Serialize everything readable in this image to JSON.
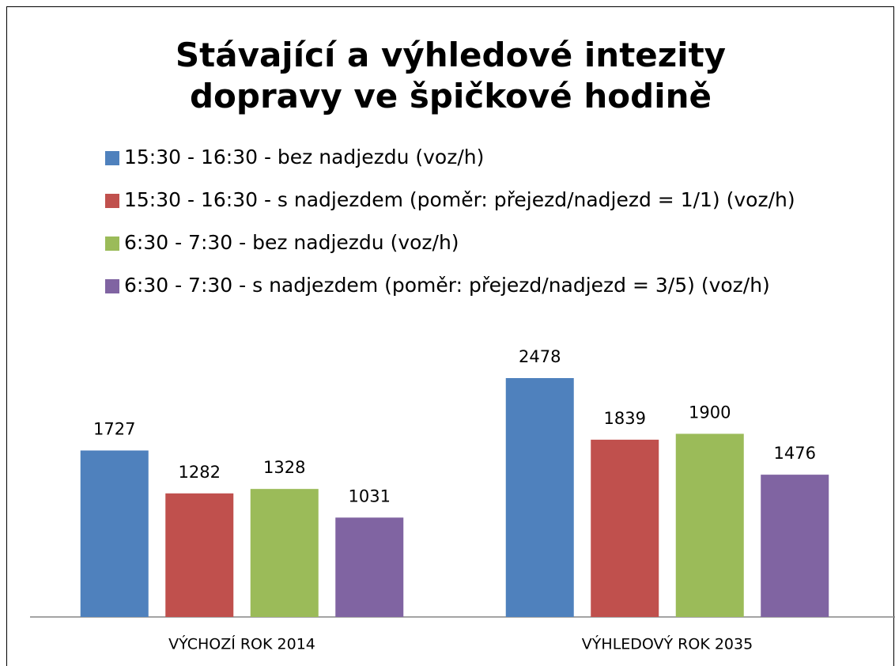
{
  "chart_data": {
    "type": "bar",
    "title": "Stávající a výhledové intezity dopravy ve špičkové hodině",
    "categories": [
      "VÝCHOZÍ ROK 2014",
      "VÝHLEDOVÝ ROK 2035"
    ],
    "series": [
      {
        "name": "15:30 - 16:30 - bez nadjezdu (voz/h)",
        "color": "#4f81bd",
        "values": [
          1727,
          2478
        ]
      },
      {
        "name": "15:30 - 16:30 - s nadjezdem (poměr: přejezd/nadjezd = 1/1) (voz/h)",
        "color": "#c0504d",
        "values": [
          1282,
          1839
        ]
      },
      {
        "name": "6:30 - 7:30 - bez nadjezdu (voz/h)",
        "color": "#9bbb59",
        "values": [
          1328,
          1900
        ]
      },
      {
        "name": "6:30 - 7:30 - s nadjezdem (poměr: přejezd/nadjezd = 3/5) (voz/h)",
        "color": "#8064a2",
        "values": [
          1031,
          1476
        ]
      }
    ]
  }
}
